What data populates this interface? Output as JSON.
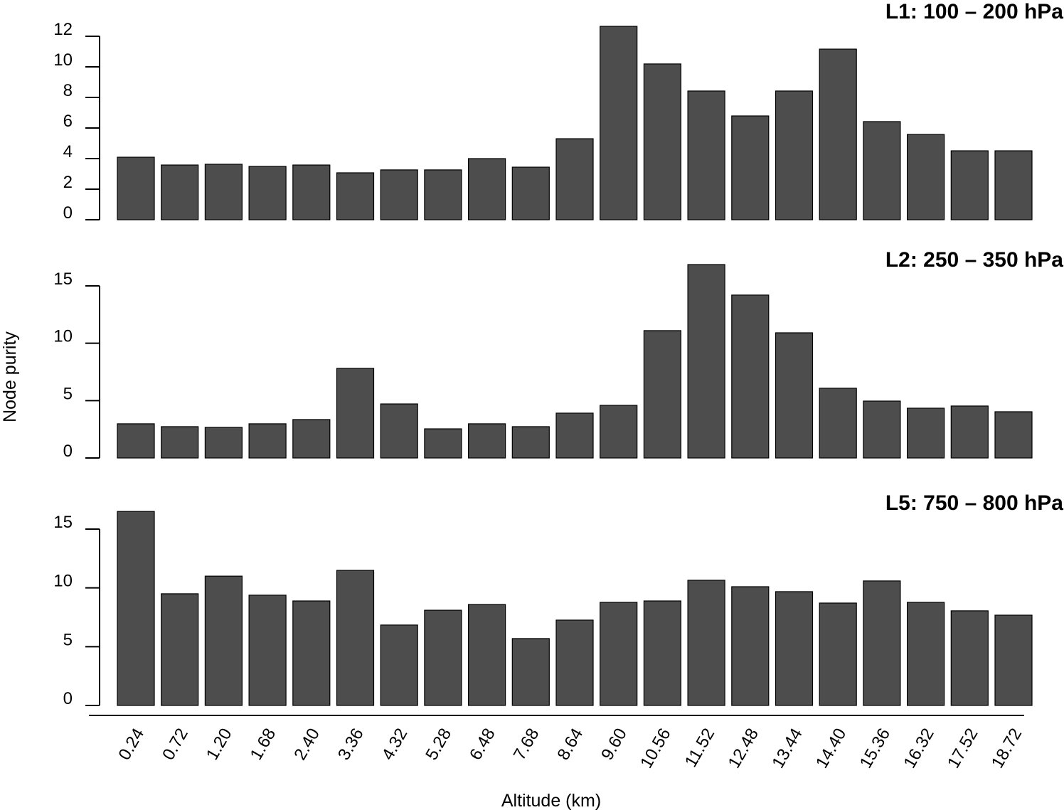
{
  "chart_data": [
    {
      "type": "bar",
      "title": "L1: 100 – 200 hPa",
      "ylim": [
        0,
        12
      ],
      "yticks": [
        0,
        2,
        4,
        6,
        8,
        10,
        12
      ],
      "values": [
        4.09,
        3.58,
        3.63,
        3.49,
        3.58,
        3.07,
        3.26,
        3.26,
        4.0,
        3.44,
        5.3,
        12.65,
        10.19,
        8.42,
        6.79,
        8.42,
        11.16,
        6.42,
        5.58,
        4.51,
        4.51
      ]
    },
    {
      "type": "bar",
      "title": "L2: 250 – 350 hPa",
      "ylim": [
        0,
        15
      ],
      "yticks": [
        0,
        5,
        10,
        15
      ],
      "values": [
        2.98,
        2.73,
        2.67,
        2.98,
        3.35,
        7.81,
        4.71,
        2.54,
        2.98,
        2.73,
        3.91,
        4.59,
        11.1,
        16.86,
        14.2,
        10.91,
        6.08,
        4.96,
        4.34,
        4.53,
        4.03
      ]
    },
    {
      "type": "bar",
      "title": "L5: 750 – 800 hPa",
      "ylim": [
        0,
        15
      ],
      "yticks": [
        0,
        5,
        10,
        15
      ],
      "values": [
        16.5,
        9.5,
        11.0,
        9.38,
        8.89,
        11.49,
        6.84,
        8.1,
        8.59,
        5.69,
        7.26,
        8.77,
        8.89,
        10.65,
        10.1,
        9.68,
        8.71,
        10.59,
        8.77,
        8.05,
        7.68
      ]
    }
  ],
  "shared": {
    "categories": [
      "0.24",
      "0.72",
      "1.20",
      "1.68",
      "2.40",
      "3.36",
      "4.32",
      "5.28",
      "6.48",
      "7.68",
      "8.64",
      "9.60",
      "10.56",
      "11.52",
      "12.48",
      "13.44",
      "14.40",
      "15.36",
      "16.32",
      "17.52",
      "18.72"
    ],
    "xlabel": "Altitude (km)",
    "ylabel": "Node purity",
    "bar_color": "#4d4d4d",
    "grid": false
  }
}
